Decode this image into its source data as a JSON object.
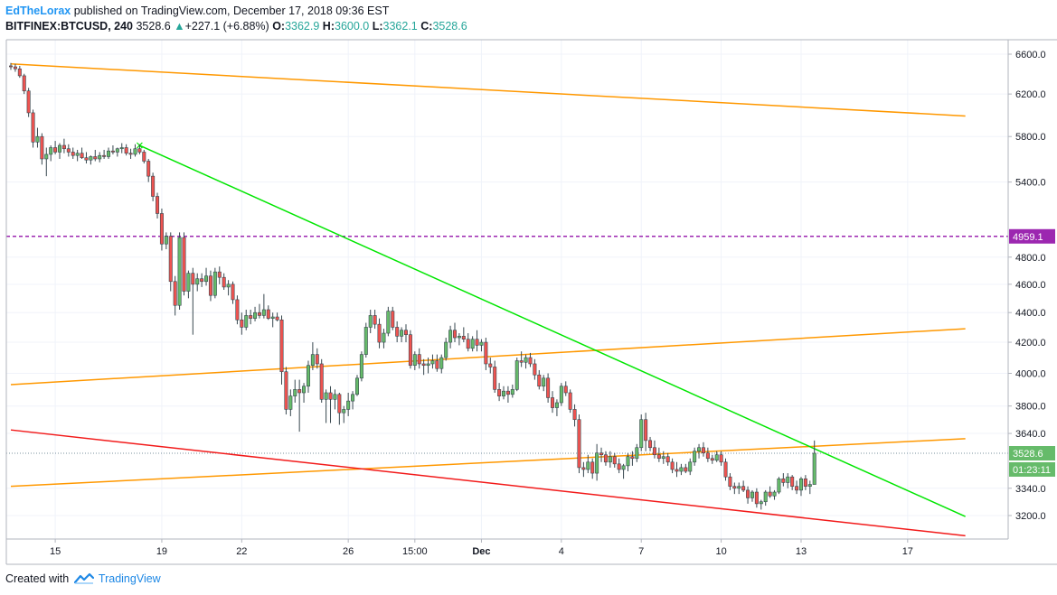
{
  "header": {
    "author": "EdTheLorax",
    "published_text": "published on TradingView.com, December 17, 2018 09:36 EST",
    "symbol": "BITFINEX:BTCUSD, 240",
    "last": "3528.6",
    "change": "+227.1 (+6.88%)",
    "o_label": "O:",
    "o_value": "3362.9",
    "h_label": "H:",
    "h_value": "3600.0",
    "l_label": "L:",
    "l_value": "3362.1",
    "c_label": "C:",
    "c_value": "3528.6"
  },
  "footer": {
    "created_with": "Created with",
    "brand": "TradingView"
  },
  "colors": {
    "up": "#26a69a",
    "up_fill": "#66bb6a",
    "down_fill": "#ef5350",
    "wick": "#37474f",
    "orange": "#ff9800",
    "green_line": "#00e600",
    "red_line": "#f21a1a",
    "purple": "#9c27b0",
    "grid": "#f0f3fa",
    "axis": "#b2b5be"
  },
  "chart_data": {
    "type": "candlestick",
    "symbol": "BITFINEX:BTCUSD",
    "interval": "240",
    "scale": "log",
    "ylim": [
      3080,
      6700
    ],
    "y_ticks": [
      6600.0,
      6200.0,
      5800.0,
      5400.0,
      4800.0,
      4600.0,
      4400.0,
      4200.0,
      4000.0,
      3800.0,
      3640.0,
      3340.0,
      3200.0
    ],
    "y_tick_labels": [
      "6600.0",
      "6200.0",
      "5800.0",
      "5400.0",
      "4800.0",
      "4600.0",
      "4400.0",
      "4200.0",
      "4000.0",
      "3800.0",
      "3640.0",
      "3340.0",
      "3200.0"
    ],
    "x_ticks": [
      {
        "label": "15",
        "bar": 10,
        "bold": false
      },
      {
        "label": "19",
        "bar": 34,
        "bold": false
      },
      {
        "label": "22",
        "bar": 52,
        "bold": false
      },
      {
        "label": "26",
        "bar": 76,
        "bold": false
      },
      {
        "label": "15:00",
        "bar": 91,
        "bold": false
      },
      {
        "label": "Dec",
        "bar": 106,
        "bold": true
      },
      {
        "label": "4",
        "bar": 124,
        "bold": false
      },
      {
        "label": "7",
        "bar": 142,
        "bold": false
      },
      {
        "label": "10",
        "bar": 160,
        "bold": false
      },
      {
        "label": "13",
        "bar": 178,
        "bold": false
      },
      {
        "label": "17",
        "bar": 202,
        "bold": false
      }
    ],
    "price_labels": [
      {
        "text": "4959.1",
        "value": 4959.1,
        "color": "#9c27b0"
      },
      {
        "text": "3528.6",
        "value": 3528.6,
        "color": "#66bb6a"
      },
      {
        "text": "01:23:11",
        "value": 3440,
        "color": "#66bb6a"
      }
    ],
    "horizontal_line": {
      "value": 4959.1,
      "color": "#9c27b0",
      "style": "dashed"
    },
    "last_price_line": {
      "value": 3528.6
    },
    "trendlines": [
      {
        "color": "#ff9800",
        "from": {
          "bar": 0,
          "price": 6500
        },
        "to": {
          "bar": 215,
          "price": 5990
        }
      },
      {
        "color": "#ff9800",
        "from": {
          "bar": 0,
          "price": 3930
        },
        "to": {
          "bar": 215,
          "price": 4290
        }
      },
      {
        "color": "#ff9800",
        "from": {
          "bar": 0,
          "price": 3350
        },
        "to": {
          "bar": 215,
          "price": 3610
        }
      },
      {
        "color": "#00e600",
        "from": {
          "bar": 29,
          "price": 5720
        },
        "to": {
          "bar": 215,
          "price": 3195
        }
      },
      {
        "color": "#f21a1a",
        "from": {
          "bar": 0,
          "price": 3660
        },
        "to": {
          "bar": 215,
          "price": 3100
        }
      }
    ],
    "candles": [
      [
        6480,
        6510,
        6440,
        6470
      ],
      [
        6470,
        6500,
        6420,
        6450
      ],
      [
        6450,
        6480,
        6360,
        6380
      ],
      [
        6380,
        6400,
        6200,
        6230
      ],
      [
        6230,
        6260,
        5980,
        6020
      ],
      [
        6020,
        6050,
        5700,
        5750
      ],
      [
        5750,
        5880,
        5700,
        5800
      ],
      [
        5800,
        5830,
        5550,
        5600
      ],
      [
        5600,
        5700,
        5450,
        5640
      ],
      [
        5640,
        5720,
        5580,
        5700
      ],
      [
        5700,
        5760,
        5640,
        5660
      ],
      [
        5660,
        5740,
        5600,
        5720
      ],
      [
        5720,
        5780,
        5650,
        5690
      ],
      [
        5690,
        5730,
        5620,
        5660
      ],
      [
        5660,
        5700,
        5600,
        5630
      ],
      [
        5630,
        5680,
        5580,
        5650
      ],
      [
        5650,
        5700,
        5600,
        5610
      ],
      [
        5610,
        5660,
        5560,
        5590
      ],
      [
        5590,
        5630,
        5550,
        5620
      ],
      [
        5620,
        5680,
        5580,
        5600
      ],
      [
        5600,
        5660,
        5570,
        5630
      ],
      [
        5630,
        5680,
        5600,
        5620
      ],
      [
        5620,
        5700,
        5600,
        5670
      ],
      [
        5670,
        5720,
        5640,
        5660
      ],
      [
        5660,
        5700,
        5620,
        5690
      ],
      [
        5690,
        5740,
        5650,
        5700
      ],
      [
        5700,
        5730,
        5630,
        5650
      ],
      [
        5650,
        5690,
        5600,
        5640
      ],
      [
        5640,
        5730,
        5620,
        5690
      ],
      [
        5690,
        5730,
        5640,
        5660
      ],
      [
        5660,
        5680,
        5560,
        5580
      ],
      [
        5580,
        5600,
        5400,
        5450
      ],
      [
        5450,
        5480,
        5240,
        5280
      ],
      [
        5280,
        5310,
        5100,
        5140
      ],
      [
        5140,
        5180,
        4850,
        4900
      ],
      [
        4900,
        4990,
        4860,
        4960
      ],
      [
        4960,
        4990,
        4550,
        4620
      ],
      [
        4620,
        4660,
        4380,
        4450
      ],
      [
        4450,
        4990,
        4420,
        4950
      ],
      [
        4950,
        4990,
        4520,
        4550
      ],
      [
        4550,
        4700,
        4500,
        4680
      ],
      [
        4680,
        4720,
        4250,
        4600
      ],
      [
        4600,
        4680,
        4550,
        4640
      ],
      [
        4640,
        4680,
        4580,
        4620
      ],
      [
        4620,
        4720,
        4590,
        4660
      ],
      [
        4660,
        4700,
        4480,
        4520
      ],
      [
        4520,
        4720,
        4500,
        4690
      ],
      [
        4690,
        4730,
        4600,
        4650
      ],
      [
        4650,
        4680,
        4560,
        4580
      ],
      [
        4580,
        4630,
        4520,
        4600
      ],
      [
        4600,
        4620,
        4460,
        4490
      ],
      [
        4490,
        4520,
        4320,
        4350
      ],
      [
        4350,
        4400,
        4250,
        4300
      ],
      [
        4300,
        4420,
        4280,
        4380
      ],
      [
        4380,
        4420,
        4320,
        4360
      ],
      [
        4360,
        4440,
        4340,
        4400
      ],
      [
        4400,
        4460,
        4360,
        4380
      ],
      [
        4380,
        4530,
        4360,
        4420
      ],
      [
        4420,
        4450,
        4350,
        4360
      ],
      [
        4360,
        4400,
        4300,
        4370
      ],
      [
        4370,
        4400,
        4340,
        4350
      ],
      [
        4350,
        4380,
        3930,
        4010
      ],
      [
        4010,
        4040,
        3750,
        3780
      ],
      [
        3780,
        3900,
        3740,
        3860
      ],
      [
        3860,
        3960,
        3820,
        3900
      ],
      [
        3900,
        3960,
        3650,
        3880
      ],
      [
        3880,
        3940,
        3820,
        3920
      ],
      [
        3920,
        4080,
        3880,
        4050
      ],
      [
        4050,
        4200,
        4020,
        4120
      ],
      [
        4120,
        4160,
        4030,
        4060
      ],
      [
        4060,
        4090,
        3820,
        3840
      ],
      [
        3840,
        3900,
        3700,
        3880
      ],
      [
        3880,
        3920,
        3700,
        3840
      ],
      [
        3840,
        3900,
        3780,
        3870
      ],
      [
        3870,
        3880,
        3690,
        3760
      ],
      [
        3760,
        3800,
        3700,
        3780
      ],
      [
        3780,
        3880,
        3740,
        3830
      ],
      [
        3830,
        3890,
        3780,
        3870
      ],
      [
        3870,
        3990,
        3860,
        3970
      ],
      [
        3970,
        4140,
        3950,
        4120
      ],
      [
        4120,
        4330,
        4100,
        4300
      ],
      [
        4300,
        4420,
        4260,
        4380
      ],
      [
        4380,
        4420,
        4290,
        4320
      ],
      [
        4320,
        4360,
        4160,
        4200
      ],
      [
        4200,
        4290,
        4160,
        4260
      ],
      [
        4260,
        4440,
        4240,
        4410
      ],
      [
        4410,
        4440,
        4280,
        4300
      ],
      [
        4300,
        4340,
        4200,
        4240
      ],
      [
        4240,
        4300,
        4200,
        4280
      ],
      [
        4280,
        4320,
        4200,
        4250
      ],
      [
        4250,
        4280,
        4030,
        4050
      ],
      [
        4050,
        4140,
        4020,
        4120
      ],
      [
        4120,
        4160,
        4030,
        4060
      ],
      [
        4060,
        4090,
        3990,
        4050
      ],
      [
        4050,
        4100,
        4000,
        4060
      ],
      [
        4060,
        4120,
        4030,
        4080
      ],
      [
        4080,
        4120,
        4010,
        4030
      ],
      [
        4030,
        4120,
        4000,
        4100
      ],
      [
        4100,
        4230,
        4080,
        4200
      ],
      [
        4200,
        4310,
        4160,
        4280
      ],
      [
        4280,
        4330,
        4200,
        4230
      ],
      [
        4230,
        4260,
        4180,
        4240
      ],
      [
        4240,
        4300,
        4200,
        4220
      ],
      [
        4220,
        4260,
        4140,
        4160
      ],
      [
        4160,
        4240,
        4140,
        4220
      ],
      [
        4220,
        4280,
        4140,
        4180
      ],
      [
        4180,
        4220,
        4140,
        4200
      ],
      [
        4200,
        4230,
        4020,
        4060
      ],
      [
        4060,
        4100,
        4000,
        4040
      ],
      [
        4040,
        4080,
        3880,
        3900
      ],
      [
        3900,
        3940,
        3830,
        3860
      ],
      [
        3860,
        3920,
        3840,
        3890
      ],
      [
        3890,
        3920,
        3820,
        3870
      ],
      [
        3870,
        3930,
        3850,
        3900
      ],
      [
        3900,
        4100,
        3890,
        4080
      ],
      [
        4080,
        4140,
        4040,
        4070
      ],
      [
        4070,
        4120,
        4030,
        4100
      ],
      [
        4100,
        4130,
        4040,
        4060
      ],
      [
        4060,
        4090,
        3960,
        3990
      ],
      [
        3990,
        4020,
        3900,
        3920
      ],
      [
        3920,
        3990,
        3890,
        3970
      ],
      [
        3970,
        4000,
        3820,
        3850
      ],
      [
        3850,
        3890,
        3760,
        3790
      ],
      [
        3790,
        3840,
        3740,
        3820
      ],
      [
        3820,
        3940,
        3800,
        3920
      ],
      [
        3920,
        3950,
        3860,
        3880
      ],
      [
        3880,
        3900,
        3760,
        3780
      ],
      [
        3780,
        3810,
        3680,
        3720
      ],
      [
        3720,
        3750,
        3420,
        3450
      ],
      [
        3450,
        3480,
        3400,
        3440
      ],
      [
        3440,
        3520,
        3420,
        3480
      ],
      [
        3480,
        3500,
        3390,
        3420
      ],
      [
        3420,
        3580,
        3380,
        3530
      ],
      [
        3530,
        3560,
        3480,
        3520
      ],
      [
        3520,
        3540,
        3460,
        3480
      ],
      [
        3480,
        3540,
        3450,
        3510
      ],
      [
        3510,
        3530,
        3450,
        3470
      ],
      [
        3470,
        3500,
        3420,
        3440
      ],
      [
        3440,
        3470,
        3390,
        3460
      ],
      [
        3460,
        3530,
        3430,
        3510
      ],
      [
        3510,
        3540,
        3460,
        3500
      ],
      [
        3500,
        3580,
        3480,
        3560
      ],
      [
        3560,
        3750,
        3540,
        3720
      ],
      [
        3720,
        3760,
        3540,
        3600
      ],
      [
        3600,
        3620,
        3540,
        3560
      ],
      [
        3560,
        3600,
        3500,
        3520
      ],
      [
        3520,
        3560,
        3480,
        3500
      ],
      [
        3500,
        3540,
        3470,
        3510
      ],
      [
        3510,
        3530,
        3460,
        3480
      ],
      [
        3480,
        3500,
        3420,
        3440
      ],
      [
        3440,
        3480,
        3400,
        3430
      ],
      [
        3430,
        3470,
        3410,
        3450
      ],
      [
        3450,
        3470,
        3420,
        3430
      ],
      [
        3430,
        3500,
        3410,
        3480
      ],
      [
        3480,
        3560,
        3460,
        3540
      ],
      [
        3540,
        3580,
        3500,
        3560
      ],
      [
        3560,
        3590,
        3510,
        3530
      ],
      [
        3530,
        3560,
        3480,
        3500
      ],
      [
        3500,
        3520,
        3470,
        3490
      ],
      [
        3490,
        3540,
        3480,
        3520
      ],
      [
        3520,
        3540,
        3460,
        3480
      ],
      [
        3480,
        3500,
        3380,
        3400
      ],
      [
        3400,
        3420,
        3330,
        3350
      ],
      [
        3350,
        3370,
        3310,
        3340
      ],
      [
        3340,
        3370,
        3310,
        3350
      ],
      [
        3350,
        3380,
        3320,
        3330
      ],
      [
        3330,
        3350,
        3260,
        3290
      ],
      [
        3290,
        3330,
        3270,
        3320
      ],
      [
        3320,
        3340,
        3240,
        3260
      ],
      [
        3260,
        3280,
        3230,
        3270
      ],
      [
        3270,
        3330,
        3250,
        3320
      ],
      [
        3320,
        3350,
        3290,
        3300
      ],
      [
        3300,
        3330,
        3280,
        3320
      ],
      [
        3320,
        3400,
        3310,
        3390
      ],
      [
        3390,
        3420,
        3350,
        3370
      ],
      [
        3370,
        3420,
        3340,
        3400
      ],
      [
        3400,
        3410,
        3330,
        3350
      ],
      [
        3350,
        3380,
        3310,
        3330
      ],
      [
        3330,
        3400,
        3300,
        3390
      ],
      [
        3390,
        3410,
        3330,
        3350
      ],
      [
        3350,
        3380,
        3310,
        3360
      ],
      [
        3360,
        3600,
        3360,
        3528.6
      ]
    ]
  }
}
